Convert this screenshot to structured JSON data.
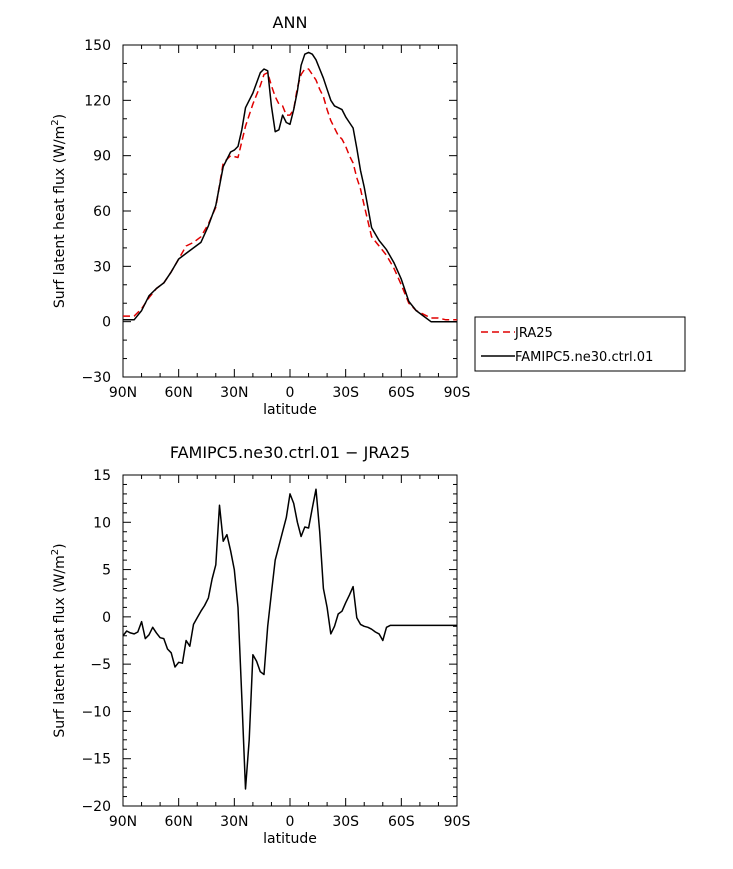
{
  "chart_data": [
    {
      "type": "line",
      "title": "ANN",
      "xlabel": "latitude",
      "ylabel": "Surf latent heat flux (W/m",
      "ylabel_sup": "2",
      "ylabel_close": ")",
      "xlim": [
        90,
        -90
      ],
      "ylim": [
        -30,
        150
      ],
      "xticks": [
        {
          "v": 90,
          "label": "90N"
        },
        {
          "v": 60,
          "label": "60N"
        },
        {
          "v": 30,
          "label": "30N"
        },
        {
          "v": 0,
          "label": "0"
        },
        {
          "v": -30,
          "label": "30S"
        },
        {
          "v": -60,
          "label": "60S"
        },
        {
          "v": -90,
          "label": "90S"
        }
      ],
      "yticks": [
        -30,
        0,
        30,
        60,
        90,
        120,
        150
      ],
      "legend": {
        "position": "right",
        "entries": [
          "JRA25",
          "FAMIPC5.ne30.ctrl.01"
        ]
      },
      "series": [
        {
          "name": "JRA25",
          "color": "#e00000",
          "dash": "7,4",
          "x": [
            90,
            86,
            84,
            80,
            76,
            72,
            68,
            64,
            60,
            56,
            52,
            48,
            44,
            40,
            36,
            32,
            28,
            24,
            20,
            16,
            14,
            12,
            10,
            8,
            6,
            4,
            2,
            0,
            -2,
            -4,
            -6,
            -8,
            -10,
            -12,
            -14,
            -16,
            -18,
            -20,
            -22,
            -24,
            -26,
            -28,
            -30,
            -32,
            -34,
            -36,
            -38,
            -40,
            -44,
            -48,
            -52,
            -56,
            -60,
            -64,
            -68,
            -72,
            -76,
            -80,
            -84,
            -88,
            -90
          ],
          "y": [
            3,
            3,
            3,
            7,
            13,
            18,
            21,
            27,
            34,
            41,
            43,
            46,
            53,
            62,
            86,
            90,
            89,
            106,
            118,
            128,
            134,
            135,
            128,
            122,
            118,
            117,
            112,
            112,
            115,
            127,
            134,
            137,
            137,
            134,
            131,
            126,
            122,
            115,
            109,
            105,
            101,
            99,
            95,
            90,
            86,
            78,
            72,
            63,
            46,
            41,
            36,
            29,
            20,
            10,
            6,
            4,
            2,
            2,
            1,
            1,
            1
          ]
        },
        {
          "name": "FAMIPC5.ne30.ctrl.01",
          "color": "#000000",
          "dash": "",
          "x": [
            90,
            86,
            84,
            80,
            76,
            72,
            68,
            64,
            60,
            56,
            52,
            48,
            44,
            40,
            36,
            32,
            30,
            28,
            26,
            24,
            20,
            16,
            14,
            12,
            10,
            8,
            6,
            4,
            2,
            0,
            -2,
            -4,
            -6,
            -8,
            -10,
            -12,
            -14,
            -16,
            -18,
            -20,
            -22,
            -24,
            -26,
            -28,
            -30,
            -32,
            -34,
            -36,
            -38,
            -40,
            -44,
            -48,
            -52,
            -56,
            -60,
            -64,
            -68,
            -72,
            -76,
            -80,
            -84,
            -88,
            -90
          ],
          "y": [
            1,
            1,
            1,
            6,
            14,
            18,
            21,
            27,
            34,
            37,
            40,
            43,
            52,
            63,
            84,
            92,
            93,
            95,
            104,
            116,
            124,
            135,
            137,
            136,
            117,
            103,
            104,
            112,
            108,
            107,
            115,
            125,
            139,
            145,
            146,
            145,
            142,
            137,
            132,
            126,
            120,
            117,
            116,
            115,
            111,
            108,
            105,
            94,
            82,
            73,
            51,
            44,
            39,
            32,
            23,
            11,
            6,
            3,
            0,
            0,
            0,
            0,
            0
          ]
        }
      ]
    },
    {
      "type": "line",
      "title": "FAMIPC5.ne30.ctrl.01 - JRA25",
      "xlabel": "latitude",
      "ylabel": "Surf latent heat flux (W/m",
      "ylabel_sup": "2",
      "ylabel_close": ")",
      "xlim": [
        90,
        -90
      ],
      "ylim": [
        -20,
        15
      ],
      "xticks": [
        {
          "v": 90,
          "label": "90N"
        },
        {
          "v": 60,
          "label": "60N"
        },
        {
          "v": 30,
          "label": "30N"
        },
        {
          "v": 0,
          "label": "0"
        },
        {
          "v": -30,
          "label": "30S"
        },
        {
          "v": -60,
          "label": "60S"
        },
        {
          "v": -90,
          "label": "90S"
        }
      ],
      "yticks": [
        -20,
        -15,
        -10,
        -5,
        0,
        5,
        10,
        15
      ],
      "series": [
        {
          "name": "FAMIPC5.ne30.ctrl.01 - JRA25",
          "color": "#000000",
          "dash": "",
          "x": [
            90,
            88,
            86,
            84,
            82,
            80,
            78,
            76,
            74,
            72,
            70,
            68,
            66,
            64,
            62,
            60,
            58,
            56,
            54,
            52,
            50,
            48,
            46,
            44,
            42,
            40,
            38,
            36,
            34,
            32,
            30,
            28,
            26,
            24,
            22,
            20,
            18,
            16,
            14,
            12,
            10,
            8,
            6,
            4,
            2,
            0,
            -2,
            -4,
            -6,
            -8,
            -10,
            -12,
            -14,
            -16,
            -18,
            -20,
            -22,
            -24,
            -26,
            -28,
            -30,
            -32,
            -34,
            -36,
            -38,
            -40,
            -42,
            -44,
            -46,
            -48,
            -50,
            -52,
            -54,
            -56,
            -58,
            -60,
            -62,
            -64,
            -66,
            -68,
            -70,
            -72,
            -74,
            -76,
            -78,
            -80,
            -82,
            -84,
            -86,
            -88,
            -90
          ],
          "y": [
            -2,
            -1.5,
            -1.7,
            -1.8,
            -1.6,
            -0.5,
            -2.3,
            -1.9,
            -1.1,
            -1.7,
            -2.2,
            -2.3,
            -3.4,
            -3.8,
            -5.3,
            -4.8,
            -4.9,
            -2.5,
            -3.1,
            -0.8,
            -0.1,
            0.6,
            1.2,
            2.0,
            4.0,
            5.5,
            11.8,
            8.0,
            8.7,
            7.0,
            5.0,
            1.0,
            -8.5,
            -18.2,
            -13.0,
            -4.0,
            -4.7,
            -5.8,
            -6.1,
            -1.0,
            2.5,
            6.0,
            7.5,
            9.0,
            10.5,
            13.0,
            12.0,
            10.0,
            8.5,
            9.5,
            9.4,
            11.5,
            13.5,
            9.0,
            3.0,
            1.0,
            -1.8,
            -1.0,
            0.3,
            0.6,
            1.5,
            2.3,
            3.2,
            -0.1,
            -0.8,
            -1.0,
            -1.1,
            -1.3,
            -1.6,
            -1.8,
            -2.5,
            -1.1,
            -0.9,
            -0.9,
            -0.9,
            -0.9,
            -0.9,
            -0.9,
            -0.9,
            -0.9,
            -0.9,
            -0.9,
            -0.9,
            -0.9,
            -0.9,
            -0.9,
            -0.9,
            -0.9,
            -0.9,
            -0.9,
            -0.9
          ]
        }
      ]
    }
  ]
}
